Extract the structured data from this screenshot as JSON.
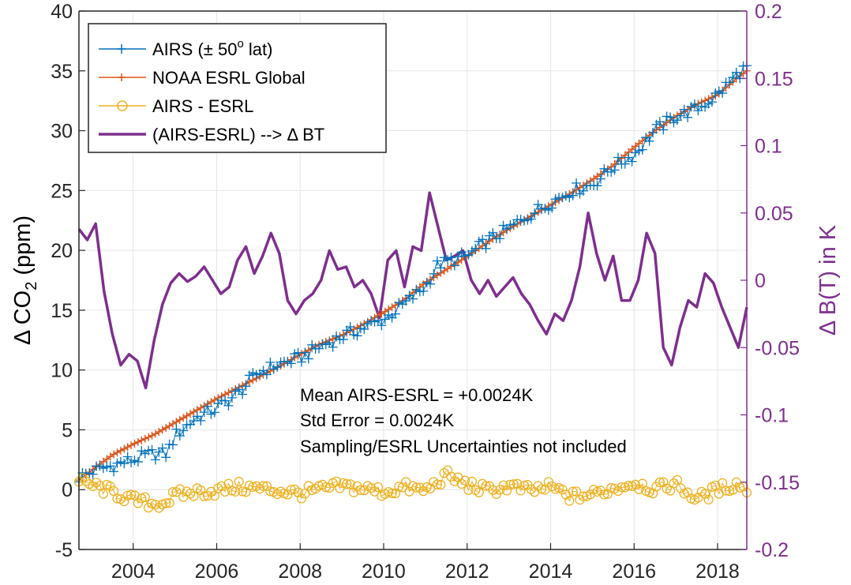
{
  "chart_data": {
    "type": "line",
    "title": "",
    "xlabel": "",
    "ylabel_left": "Δ CO₂ (ppm)",
    "ylabel_left_parts": [
      "Δ CO",
      "2",
      " (ppm)"
    ],
    "ylabel_right": "Δ B(T) in K",
    "xlim": [
      2002.7,
      2018.7
    ],
    "ylim_left": [
      -5,
      40
    ],
    "ylim_right": [
      -0.2,
      0.2
    ],
    "x_ticks": [
      2004,
      2006,
      2008,
      2010,
      2012,
      2014,
      2016,
      2018
    ],
    "x_tick_labels": [
      "2004",
      "2006",
      "2008",
      "2010",
      "2012",
      "2014",
      "2016",
      "2018"
    ],
    "y_left_ticks": [
      -5,
      0,
      5,
      10,
      15,
      20,
      25,
      30,
      35,
      40
    ],
    "y_left_tick_labels": [
      "-5",
      "0",
      "5",
      "10",
      "15",
      "20",
      "25",
      "30",
      "35",
      "40"
    ],
    "y_right_ticks": [
      -0.2,
      -0.15,
      -0.1,
      -0.05,
      0,
      0.05,
      0.1,
      0.15,
      0.2
    ],
    "y_right_tick_labels": [
      "-0.2",
      "-0.15",
      "-0.1",
      "-0.05",
      "0",
      "0.05",
      "0.1",
      "0.15",
      "0.2"
    ],
    "grid": true,
    "legend_position": "top-left",
    "colors": {
      "airs": "#0072bd",
      "noaa": "#d95319",
      "diff": "#edb120",
      "bt": "#7e2f8e",
      "axis": "#262626",
      "grid": "#e6e6e6"
    },
    "series": [
      {
        "name": "AIRS (± 50° lat)",
        "legend_parts": [
          "AIRS (± 50",
          "o",
          " lat)"
        ],
        "axis": "left",
        "marker": "plus",
        "x": [
          2002.7,
          2003.0,
          2003.5,
          2004.0,
          2004.5,
          2004.8,
          2005.0,
          2005.5,
          2006.0,
          2006.5,
          2007.0,
          2007.5,
          2008.0,
          2008.5,
          2009.0,
          2009.5,
          2010.0,
          2010.5,
          2011.0,
          2011.3,
          2011.5,
          2012.0,
          2012.5,
          2013.0,
          2013.5,
          2014.0,
          2014.5,
          2015.0,
          2015.5,
          2016.0,
          2016.5,
          2017.0,
          2017.5,
          2018.0,
          2018.5,
          2018.7
        ],
        "values": [
          1.0,
          1.5,
          2.0,
          2.5,
          3.0,
          3.0,
          4.5,
          6.0,
          6.8,
          8.0,
          9.8,
          10.5,
          11.0,
          12.0,
          12.8,
          13.5,
          14.2,
          15.5,
          17.0,
          18.8,
          19.0,
          19.5,
          20.8,
          21.8,
          23.0,
          24.0,
          25.0,
          25.5,
          27.0,
          28.0,
          30.0,
          31.2,
          31.8,
          33.0,
          34.8,
          35.3
        ]
      },
      {
        "name": "NOAA ESRL Global",
        "axis": "left",
        "marker": "plus",
        "x": [
          2002.7,
          2003.0,
          2003.5,
          2004.0,
          2004.5,
          2005.0,
          2005.5,
          2006.0,
          2006.5,
          2007.0,
          2007.5,
          2008.0,
          2008.5,
          2009.0,
          2009.5,
          2010.0,
          2010.5,
          2011.0,
          2011.5,
          2012.0,
          2012.5,
          2013.0,
          2013.5,
          2014.0,
          2014.5,
          2015.0,
          2015.5,
          2016.0,
          2016.5,
          2017.0,
          2017.5,
          2018.0,
          2018.5,
          2018.7
        ],
        "values": [
          0.8,
          1.6,
          2.9,
          3.8,
          4.6,
          5.6,
          6.6,
          7.6,
          8.5,
          9.4,
          10.3,
          11.3,
          12.2,
          12.9,
          13.8,
          14.8,
          15.9,
          17.3,
          18.4,
          19.5,
          20.7,
          21.8,
          22.8,
          23.8,
          24.8,
          25.9,
          27.1,
          28.6,
          30.0,
          31.2,
          32.2,
          33.0,
          34.5,
          35.0
        ]
      },
      {
        "name": "AIRS - ESRL",
        "axis": "left",
        "marker": "circle",
        "x": [
          2002.7,
          2003.0,
          2003.5,
          2004.0,
          2004.5,
          2004.8,
          2005.0,
          2005.5,
          2006.0,
          2006.5,
          2007.0,
          2007.5,
          2008.0,
          2008.5,
          2009.0,
          2009.5,
          2010.0,
          2010.5,
          2011.0,
          2011.5,
          2012.0,
          2012.5,
          2013.0,
          2013.5,
          2014.0,
          2014.5,
          2015.0,
          2015.5,
          2016.0,
          2016.5,
          2017.0,
          2017.5,
          2018.0,
          2018.5,
          2018.7
        ],
        "values": [
          0.6,
          0.4,
          -0.2,
          -0.9,
          -1.2,
          -1.0,
          -0.5,
          -0.2,
          -0.1,
          0.2,
          0.1,
          -0.1,
          -0.3,
          0.0,
          0.3,
          0.1,
          -0.2,
          0.2,
          -0.1,
          1.2,
          0.4,
          -0.1,
          0.3,
          -0.1,
          0.2,
          -0.6,
          -0.4,
          0.1,
          0.6,
          0.0,
          0.5,
          -0.8,
          0.0,
          0.5,
          0.0
        ]
      },
      {
        "name": "(AIRS-ESRL) --> Δ BT",
        "axis": "right",
        "marker": "none",
        "x": [
          2002.7,
          2002.9,
          2003.1,
          2003.3,
          2003.5,
          2003.7,
          2003.9,
          2004.1,
          2004.3,
          2004.5,
          2004.7,
          2004.9,
          2005.1,
          2005.3,
          2005.5,
          2005.7,
          2005.9,
          2006.1,
          2006.3,
          2006.5,
          2006.7,
          2006.9,
          2007.1,
          2007.3,
          2007.5,
          2007.7,
          2007.9,
          2008.1,
          2008.3,
          2008.5,
          2008.7,
          2008.9,
          2009.1,
          2009.3,
          2009.5,
          2009.7,
          2009.9,
          2010.1,
          2010.3,
          2010.5,
          2010.7,
          2010.9,
          2011.1,
          2011.3,
          2011.5,
          2011.7,
          2011.9,
          2012.1,
          2012.3,
          2012.5,
          2012.7,
          2012.9,
          2013.1,
          2013.3,
          2013.5,
          2013.7,
          2013.9,
          2014.1,
          2014.3,
          2014.5,
          2014.7,
          2014.9,
          2015.1,
          2015.3,
          2015.5,
          2015.7,
          2015.9,
          2016.1,
          2016.3,
          2016.5,
          2016.7,
          2016.9,
          2017.1,
          2017.3,
          2017.5,
          2017.7,
          2017.9,
          2018.1,
          2018.3,
          2018.5,
          2018.7
        ],
        "values": [
          0.038,
          0.03,
          0.042,
          -0.008,
          -0.04,
          -0.063,
          -0.055,
          -0.06,
          -0.08,
          -0.045,
          -0.018,
          -0.002,
          0.005,
          -0.001,
          0.003,
          0.01,
          0.0,
          -0.01,
          -0.005,
          0.015,
          0.025,
          0.005,
          0.018,
          0.035,
          0.02,
          -0.015,
          -0.025,
          -0.015,
          -0.01,
          0.0,
          0.022,
          0.008,
          0.01,
          -0.005,
          0.0,
          -0.01,
          -0.028,
          0.015,
          0.022,
          -0.005,
          0.025,
          0.022,
          0.065,
          0.04,
          0.015,
          0.018,
          0.022,
          0.0,
          -0.01,
          0.0,
          -0.012,
          -0.005,
          0.002,
          -0.01,
          -0.018,
          -0.03,
          -0.04,
          -0.025,
          -0.03,
          -0.015,
          0.01,
          0.05,
          0.02,
          0.0,
          0.018,
          -0.015,
          -0.015,
          0.0,
          0.035,
          0.02,
          -0.05,
          -0.063,
          -0.035,
          -0.015,
          -0.02,
          0.005,
          -0.002,
          -0.02,
          -0.035,
          -0.05,
          -0.02
        ]
      }
    ],
    "annotations": [
      "Mean AIRS-ESRL = +0.0024K",
      "Std Error = 0.0024K",
      "Sampling/ESRL Uncertainties not included"
    ]
  }
}
